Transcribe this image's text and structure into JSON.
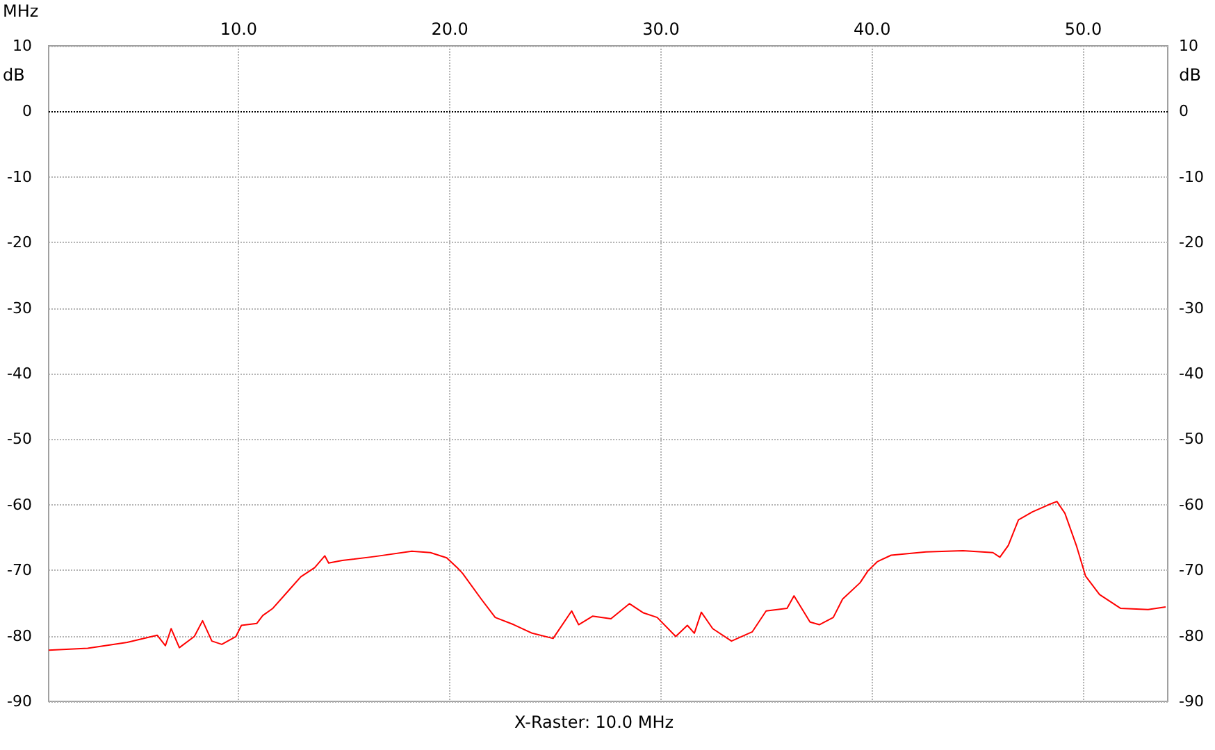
{
  "chart_data": {
    "type": "line",
    "xlabel": "MHz",
    "ylabel": "dB",
    "y2label": "dB",
    "annotations": [
      "X-Raster: 10.0 MHz"
    ],
    "x": [
      1.0,
      2.85,
      4.72,
      6.14,
      6.53,
      6.8,
      7.19,
      7.9,
      8.29,
      8.73,
      9.2,
      9.87,
      10.13,
      10.86,
      11.14,
      11.62,
      12.39,
      12.94,
      13.6,
      14.08,
      14.26,
      14.91,
      16.45,
      18.2,
      19.08,
      19.85,
      20.35,
      20.61,
      21.49,
      22.15,
      23.03,
      23.9,
      24.89,
      25.77,
      26.1,
      26.76,
      27.63,
      28.51,
      29.17,
      29.82,
      30.7,
      31.25,
      31.58,
      31.91,
      32.45,
      33.34,
      34.32,
      34.98,
      35.97,
      36.3,
      37.06,
      37.5,
      38.16,
      38.6,
      39.43,
      39.8,
      40.24,
      40.9,
      42.55,
      44.3,
      45.72,
      46.05,
      46.45,
      46.93,
      47.59,
      48.36,
      48.75,
      49.13,
      49.67,
      50.11,
      50.77,
      51.76,
      53.07,
      53.9
    ],
    "series": [
      {
        "color": "#ff0000",
        "values": [
          -82.2,
          -81.9,
          -81.0,
          -79.9,
          -81.5,
          -78.9,
          -81.8,
          -80.1,
          -77.7,
          -80.8,
          -81.3,
          -80.1,
          -78.4,
          -78.1,
          -76.9,
          -75.8,
          -73.0,
          -71.0,
          -69.6,
          -67.8,
          -68.9,
          -68.5,
          -67.9,
          -67.1,
          -67.3,
          -68.1,
          -69.6,
          -70.5,
          -74.4,
          -77.2,
          -78.3,
          -79.6,
          -80.4,
          -76.2,
          -78.3,
          -77.0,
          -77.4,
          -75.1,
          -76.5,
          -77.2,
          -80.1,
          -78.4,
          -79.6,
          -76.4,
          -78.9,
          -80.8,
          -79.4,
          -76.2,
          -75.8,
          -73.9,
          -77.9,
          -78.3,
          -77.2,
          -74.4,
          -71.9,
          -70.1,
          -68.7,
          -67.7,
          -67.2,
          -67.0,
          -67.3,
          -68.0,
          -66.2,
          -62.3,
          -61.1,
          -60.0,
          -59.5,
          -61.3,
          -66.2,
          -70.9,
          -73.7,
          -75.8,
          -76.0,
          -75.6
        ]
      }
    ],
    "marker": "none",
    "line_style": "solid",
    "grid": true,
    "xlim": [
      1,
      54
    ],
    "xticks": [
      {
        "value": 10,
        "label": "10.0"
      },
      {
        "value": 20,
        "label": "20.0"
      },
      {
        "value": 30,
        "label": "30.0"
      },
      {
        "value": 40,
        "label": "40.0"
      },
      {
        "value": 50,
        "label": "50.0"
      }
    ],
    "ylim": [
      -90,
      10
    ],
    "yticks": [
      -90,
      -80,
      -70,
      -60,
      -50,
      -40,
      -30,
      -20,
      -10,
      0,
      10
    ],
    "y2lim": [
      -90,
      10
    ],
    "y2ticks": [
      -90,
      -80,
      -70,
      -60,
      -50,
      -40,
      -30,
      -20,
      -10,
      0,
      10
    ],
    "ref_lines": [
      {
        "axis": "y",
        "value": 0,
        "color": "#000000",
        "line_style": "dotted"
      }
    ]
  }
}
